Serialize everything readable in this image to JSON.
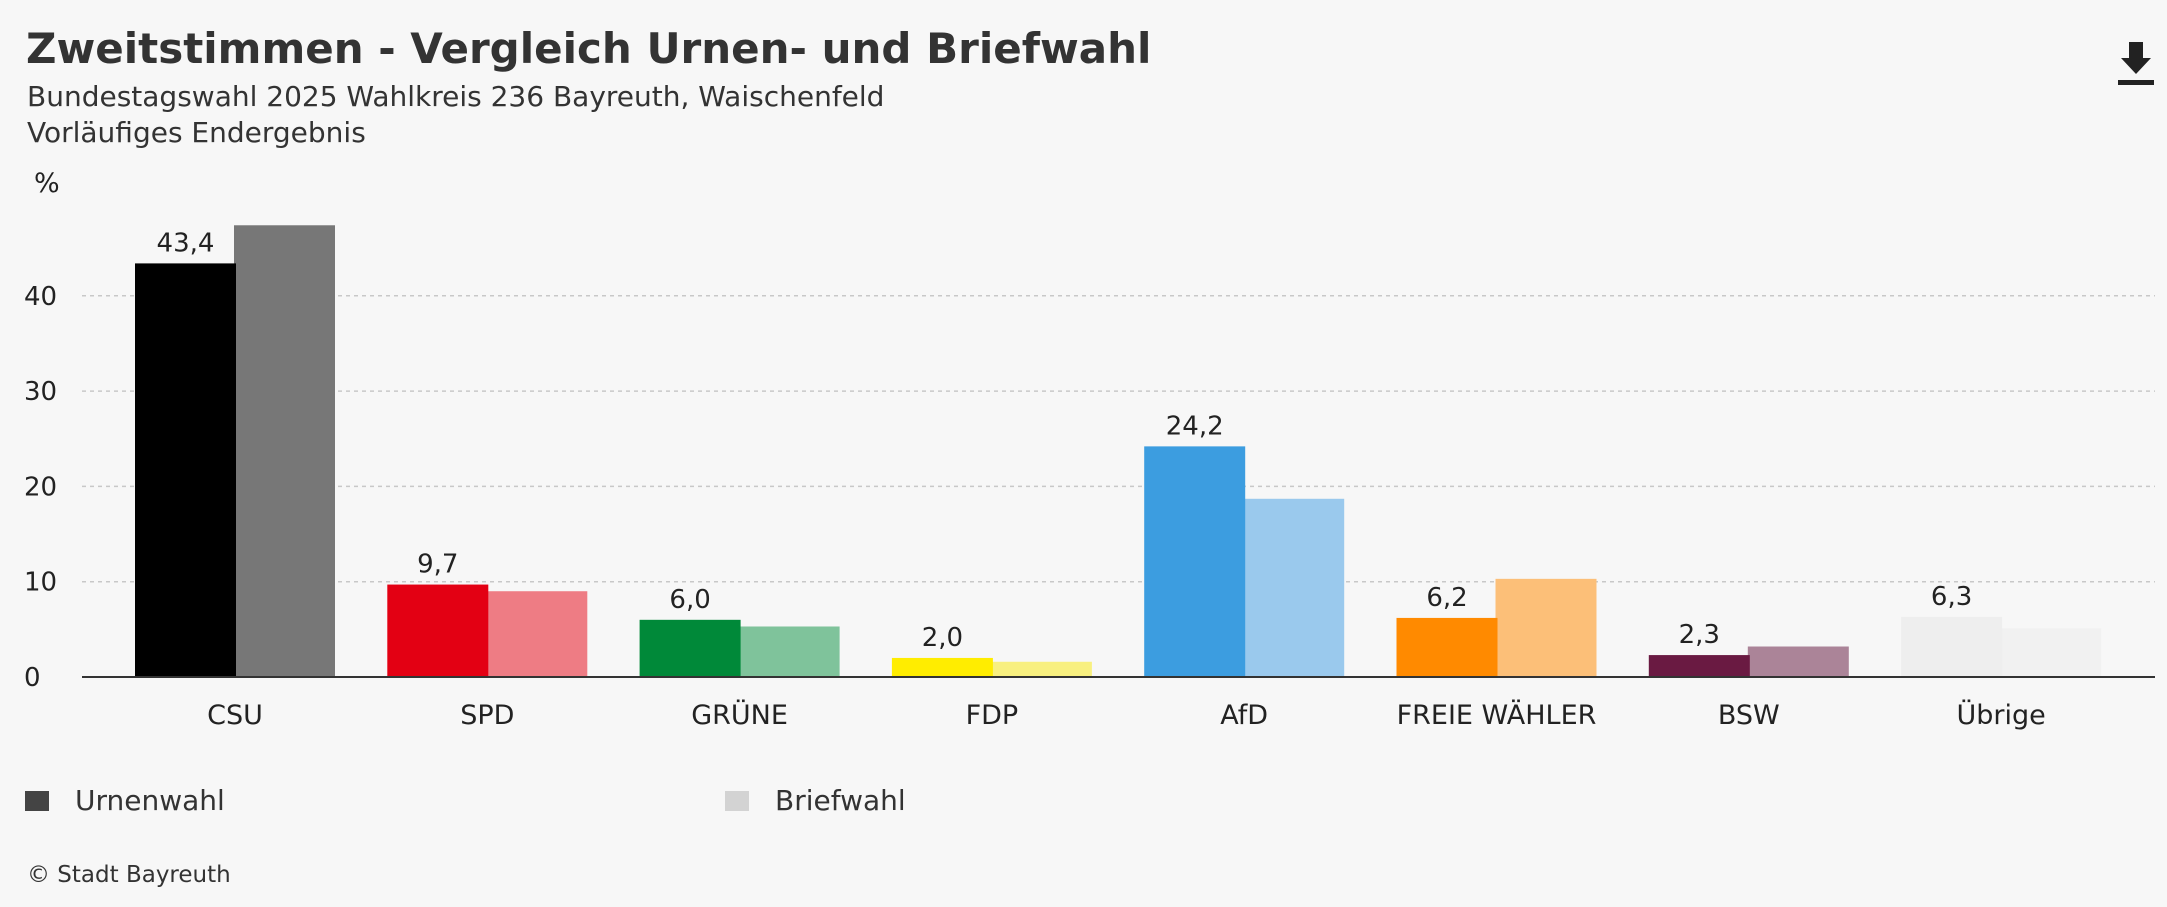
{
  "header": {
    "title": "Zweitstimmen - Vergleich Urnen- und Briefwahl",
    "subtitle_line1": "Bundestagswahl 2025 Wahlkreis 236 Bayreuth, Waischenfeld",
    "subtitle_line2": "Vorläufiges Endergebnis"
  },
  "toolbar": {
    "download_icon": "download-icon"
  },
  "legend": {
    "items": [
      {
        "label": "Urnenwahl",
        "color": "#444444"
      },
      {
        "label": "Briefwahl",
        "color": "#d3d3d3"
      }
    ]
  },
  "footer": {
    "source": "© Stadt Bayreuth"
  },
  "chart_data": {
    "type": "bar",
    "ylabel": "%",
    "ylim": [
      0,
      47.5
    ],
    "yticks": [
      0,
      10,
      20,
      30,
      40
    ],
    "grid": true,
    "legend_position": "bottom-left",
    "categories": [
      "CSU",
      "SPD",
      "GRÜNE",
      "FDP",
      "AfD",
      "FREIE WÄHLER",
      "BSW",
      "Übrige"
    ],
    "series": [
      {
        "name": "Urnenwahl",
        "values": [
          43.4,
          9.7,
          6.0,
          2.0,
          24.2,
          6.2,
          2.3,
          6.3
        ],
        "labels": [
          "43,4",
          "9,7",
          "6,0",
          "2,0",
          "24,2",
          "6,2",
          "2,3",
          "6,3"
        ],
        "colors": [
          "#000000",
          "#e30013",
          "#008939",
          "#ffed00",
          "#3c9de0",
          "#ff8a00",
          "#6a1a42",
          "#eeeeee"
        ]
      },
      {
        "name": "Briefwahl",
        "values": [
          47.4,
          9.0,
          5.3,
          1.6,
          18.7,
          10.3,
          3.2,
          5.1
        ],
        "colors": [
          "#777777",
          "#ee7c84",
          "#7fc39b",
          "#f8f080",
          "#9ac9ed",
          "#fcbf78",
          "#ab8498",
          "#f1f1f1"
        ]
      }
    ]
  }
}
